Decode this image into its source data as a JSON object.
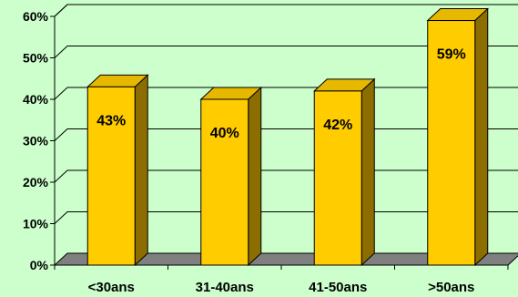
{
  "chart_data": {
    "type": "bar",
    "categories": [
      "<30ans",
      "31-40ans",
      "41-50ans",
      ">50ans"
    ],
    "values": [
      43,
      40,
      42,
      59
    ],
    "data_labels": [
      "43%",
      "40%",
      "42%",
      "59%"
    ],
    "yticks": [
      "0%",
      "10%",
      "20%",
      "30%",
      "40%",
      "50%",
      "60%"
    ],
    "ylim": [
      0,
      60
    ],
    "grid": true,
    "style": "3d",
    "colors": {
      "background": "#ccffcc",
      "bar_front": "#ffcc00",
      "bar_side": "#8c6e00",
      "bar_top": "#e6b800",
      "floor": "#808080"
    }
  }
}
